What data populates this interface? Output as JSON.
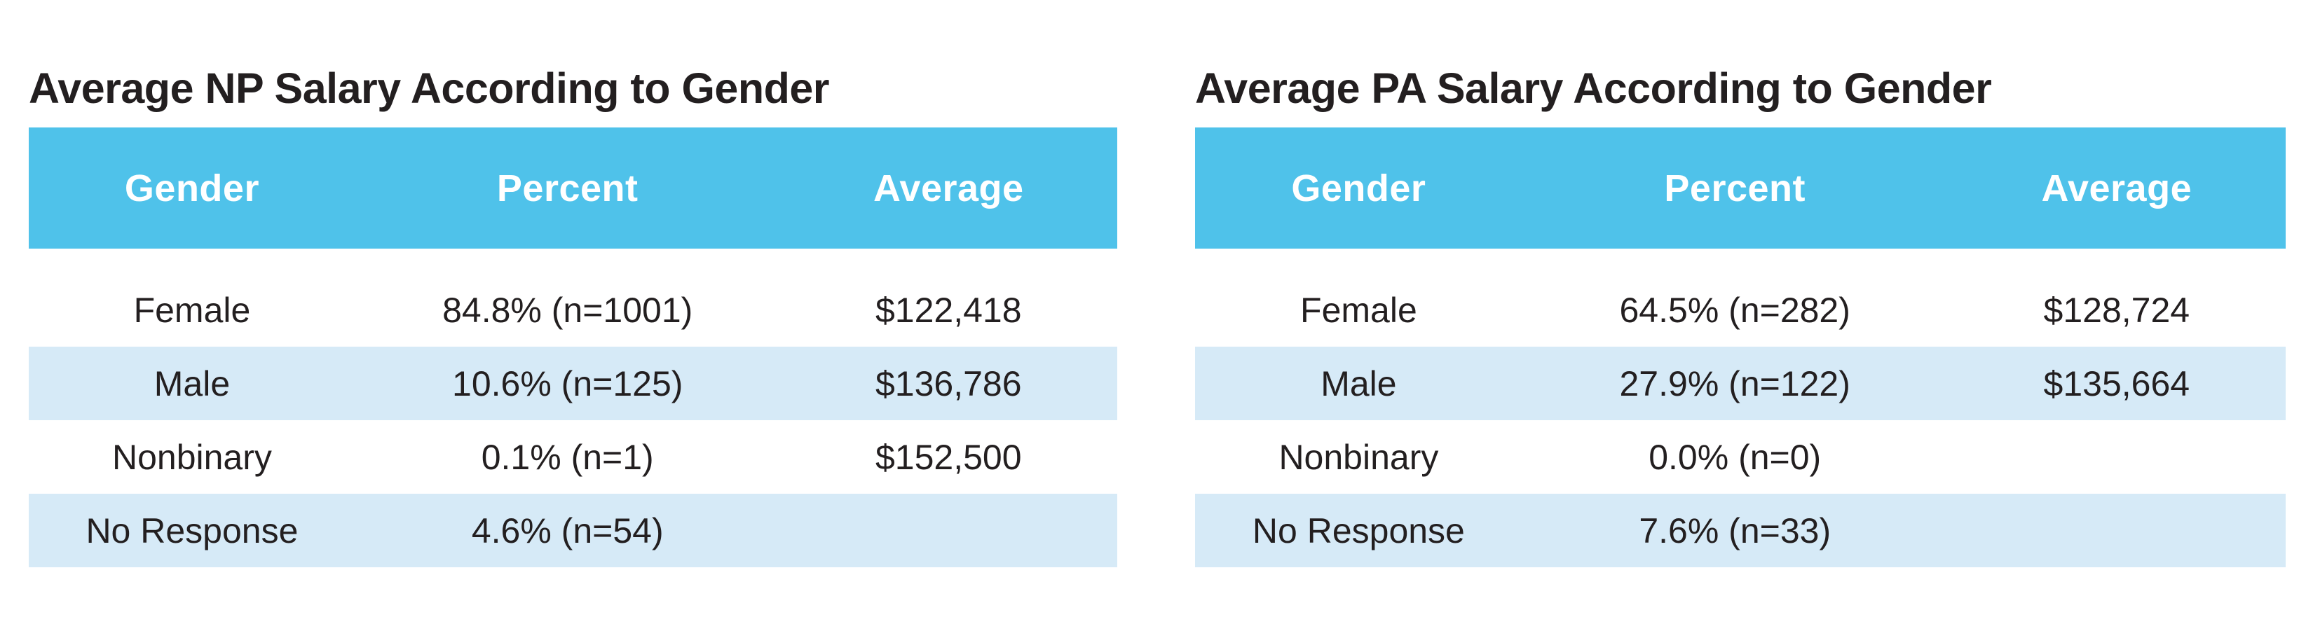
{
  "colors": {
    "header_bg": "#4FC2EA",
    "row_alt_bg": "#D6EAF7",
    "title_text": "#231F20",
    "body_text": "#231F20",
    "header_text": "#FFFFFF"
  },
  "chart_data": [
    {
      "type": "table",
      "title": "Average NP Salary According to Gender",
      "columns": [
        "Gender",
        "Percent",
        "Average"
      ],
      "rows": [
        {
          "gender": "Female",
          "percent": "84.8% (n=1001)",
          "average": "$122,418"
        },
        {
          "gender": "Male",
          "percent": "10.6% (n=125)",
          "average": "$136,786"
        },
        {
          "gender": "Nonbinary",
          "percent": "0.1% (n=1)",
          "average": "$152,500"
        },
        {
          "gender": "No Response",
          "percent": "4.6% (n=54)",
          "average": ""
        }
      ]
    },
    {
      "type": "table",
      "title": "Average PA Salary According to Gender",
      "columns": [
        "Gender",
        "Percent",
        "Average"
      ],
      "rows": [
        {
          "gender": "Female",
          "percent": "64.5% (n=282)",
          "average": "$128,724"
        },
        {
          "gender": "Male",
          "percent": "27.9% (n=122)",
          "average": "$135,664"
        },
        {
          "gender": "Nonbinary",
          "percent": "0.0% (n=0)",
          "average": ""
        },
        {
          "gender": "No Response",
          "percent": "7.6% (n=33)",
          "average": ""
        }
      ]
    }
  ]
}
